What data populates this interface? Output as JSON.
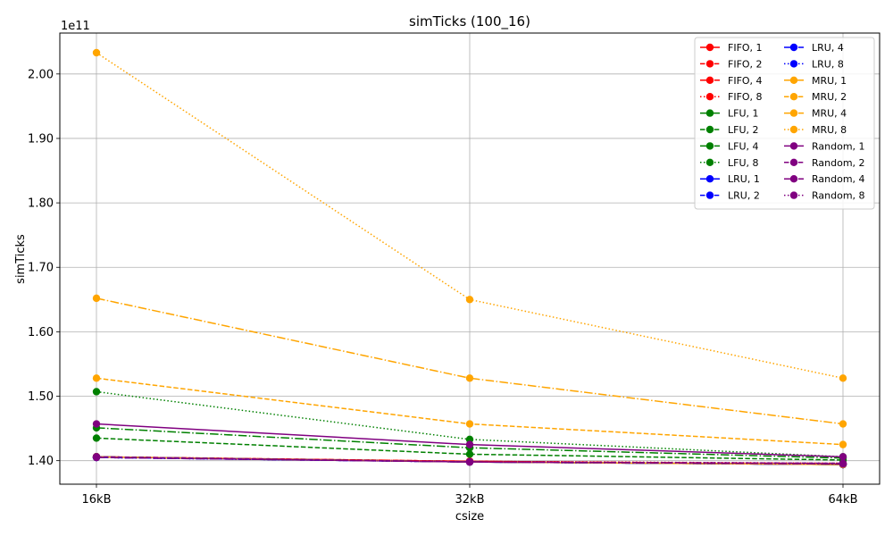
{
  "chart_data": {
    "type": "line",
    "title": "simTicks (100_16)",
    "xlabel": "csize",
    "ylabel": "simTicks",
    "categories": [
      "16kB",
      "32kB",
      "64kB"
    ],
    "y_offset_label": "1e11",
    "y_scale": 100000000000,
    "ylim": [
      1.3635,
      2.0635
    ],
    "yticks": [
      1.4,
      1.5,
      1.6,
      1.7,
      1.8,
      1.9,
      2.0
    ],
    "ytick_labels": [
      "1.40",
      "1.50",
      "1.60",
      "1.70",
      "1.80",
      "1.90",
      "2.00"
    ],
    "grid": true,
    "legend_position": "top-right",
    "legend_columns": 2,
    "colors": {
      "FIFO": "#ff0000",
      "LFU": "#008000",
      "LRU": "#0000ff",
      "MRU": "#ffa500",
      "Random": "#800080"
    },
    "series": [
      {
        "name": "FIFO, 1",
        "policy": "FIFO",
        "style": "solid",
        "values": [
          1.406,
          1.398,
          1.394
        ]
      },
      {
        "name": "FIFO, 2",
        "policy": "FIFO",
        "style": "dashed",
        "values": [
          1.406,
          1.399,
          1.395
        ]
      },
      {
        "name": "FIFO, 4",
        "policy": "FIFO",
        "style": "dashdot",
        "values": [
          1.406,
          1.399,
          1.395
        ]
      },
      {
        "name": "FIFO, 8",
        "policy": "FIFO",
        "style": "dotted",
        "values": [
          1.406,
          1.399,
          1.396
        ]
      },
      {
        "name": "LFU, 1",
        "policy": "LFU",
        "style": "solid",
        "values": [
          1.406,
          1.398,
          1.394
        ]
      },
      {
        "name": "LFU, 2",
        "policy": "LFU",
        "style": "dashed",
        "values": [
          1.435,
          1.41,
          1.401
        ]
      },
      {
        "name": "LFU, 4",
        "policy": "LFU",
        "style": "dashdot",
        "values": [
          1.451,
          1.42,
          1.404
        ]
      },
      {
        "name": "LFU, 8",
        "policy": "LFU",
        "style": "dotted",
        "values": [
          1.507,
          1.433,
          1.406
        ]
      },
      {
        "name": "LRU, 1",
        "policy": "LRU",
        "style": "solid",
        "values": [
          1.406,
          1.398,
          1.394
        ]
      },
      {
        "name": "LRU, 2",
        "policy": "LRU",
        "style": "dashed",
        "values": [
          1.405,
          1.398,
          1.394
        ]
      },
      {
        "name": "LRU, 4",
        "policy": "LRU",
        "style": "dashdot",
        "values": [
          1.405,
          1.398,
          1.394
        ]
      },
      {
        "name": "LRU, 8",
        "policy": "LRU",
        "style": "dotted",
        "values": [
          1.405,
          1.398,
          1.394
        ]
      },
      {
        "name": "MRU, 1",
        "policy": "MRU",
        "style": "solid",
        "values": [
          1.406,
          1.398,
          1.394
        ]
      },
      {
        "name": "MRU, 2",
        "policy": "MRU",
        "style": "dashed",
        "values": [
          1.528,
          1.457,
          1.425
        ]
      },
      {
        "name": "MRU, 4",
        "policy": "MRU",
        "style": "dashdot",
        "values": [
          1.652,
          1.528,
          1.457
        ]
      },
      {
        "name": "MRU, 8",
        "policy": "MRU",
        "style": "dotted",
        "values": [
          2.033,
          1.65,
          1.528
        ]
      },
      {
        "name": "Random, 1",
        "policy": "Random",
        "style": "solid",
        "values": [
          1.457,
          1.425,
          1.406
        ]
      },
      {
        "name": "Random, 2",
        "policy": "Random",
        "style": "dashed",
        "values": [
          1.406,
          1.398,
          1.396
        ]
      },
      {
        "name": "Random, 4",
        "policy": "Random",
        "style": "dashdot",
        "values": [
          1.405,
          1.398,
          1.395
        ]
      },
      {
        "name": "Random, 8",
        "policy": "Random",
        "style": "dotted",
        "values": [
          1.405,
          1.398,
          1.395
        ]
      }
    ]
  }
}
